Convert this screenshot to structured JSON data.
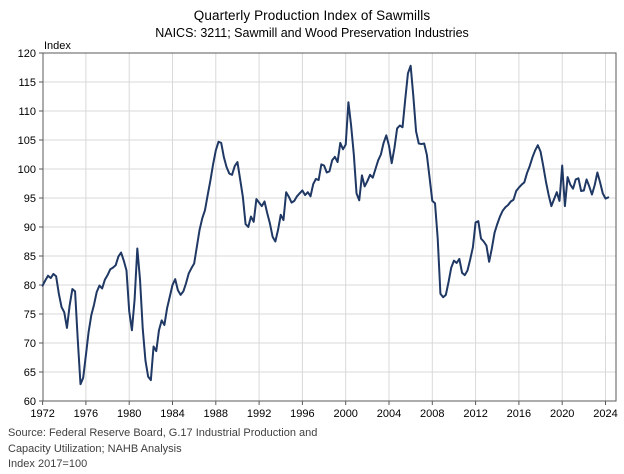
{
  "chart": {
    "title": "Quarterly Production Index of Sawmills",
    "subtitle": "NAICS: 3211; Sawmill and Wood Preservation Industries",
    "y_axis_unit_label": "Index",
    "source_lines": [
      "Source: Federal Reserve Board, G.17 Industrial Production and",
      "Capacity Utilization; NAHB Analysis",
      "Index 2017=100"
    ],
    "colors": {
      "line": "#1F3864",
      "grid": "#D9D9D9",
      "frame": "#595959",
      "tick": "#595959",
      "label_text": "#000000",
      "source_text": "#3f3f3f"
    }
  },
  "chart_data": {
    "type": "line",
    "title": "Quarterly Production Index of Sawmills",
    "subtitle": "NAICS: 3211; Sawmill and Wood Preservation Industries",
    "ylabel": "Index",
    "index_base_note": "Index 2017=100",
    "frequency": "quarterly",
    "x_start_year": 1972,
    "x_end": "2024Q2",
    "x_tick_years": [
      1972,
      1976,
      1980,
      1984,
      1988,
      1992,
      1996,
      2000,
      2004,
      2008,
      2012,
      2016,
      2020,
      2024
    ],
    "y_ticks": [
      60,
      65,
      70,
      75,
      80,
      85,
      90,
      95,
      100,
      105,
      110,
      115,
      120
    ],
    "ylim": [
      60,
      120
    ],
    "grid": true,
    "legend": "none",
    "series": [
      {
        "name": "Sawmill and wood preservation production index (NAICS 3211, 2017=100)",
        "values": [
          79.9,
          80.8,
          81.6,
          81.2,
          81.9,
          81.5,
          78.5,
          76.2,
          75.3,
          72.6,
          76.5,
          79.3,
          78.9,
          70.5,
          62.9,
          64.0,
          67.9,
          71.9,
          74.8,
          76.6,
          78.8,
          79.9,
          79.4,
          80.9,
          81.7,
          82.7,
          83.0,
          83.4,
          84.9,
          85.6,
          84.2,
          82.5,
          75.5,
          72.2,
          77.5,
          86.3,
          80.9,
          72.5,
          67.0,
          64.2,
          63.6,
          69.4,
          68.6,
          72.2,
          73.9,
          73.1,
          76.0,
          78.0,
          80.0,
          81.0,
          79.1,
          78.3,
          78.9,
          80.3,
          82.0,
          82.9,
          83.7,
          86.6,
          89.5,
          91.5,
          92.9,
          95.5,
          98.0,
          100.8,
          103.2,
          104.7,
          104.5,
          102.0,
          100.3,
          99.2,
          99.0,
          100.5,
          101.2,
          98.2,
          95.2,
          90.5,
          90.0,
          91.8,
          90.9,
          94.8,
          94.2,
          93.6,
          94.4,
          92.4,
          90.6,
          88.3,
          87.5,
          89.5,
          92.1,
          91.2,
          96.0,
          95.2,
          94.2,
          94.5,
          95.3,
          95.8,
          96.3,
          95.5,
          96.0,
          95.3,
          97.4,
          98.3,
          98.1,
          100.8,
          100.6,
          99.4,
          99.6,
          101.5,
          102.1,
          101.2,
          104.5,
          103.4,
          104.2,
          111.5,
          107.5,
          102.5,
          95.8,
          94.6,
          98.9,
          97.0,
          97.9,
          99.0,
          98.5,
          100.0,
          101.5,
          102.5,
          104.5,
          105.8,
          104.0,
          101.0,
          103.6,
          107.0,
          107.5,
          107.2,
          112.0,
          116.5,
          117.8,
          112.5,
          106.5,
          104.4,
          104.3,
          104.4,
          102.4,
          98.5,
          94.5,
          94.1,
          88.0,
          78.5,
          77.9,
          78.3,
          80.5,
          83.0,
          84.2,
          83.8,
          84.5,
          82.1,
          81.7,
          82.5,
          84.4,
          86.5,
          90.8,
          91.0,
          88.0,
          87.5,
          86.8,
          84.0,
          86.3,
          89.0,
          90.5,
          91.8,
          92.8,
          93.4,
          93.8,
          94.4,
          94.7,
          96.2,
          96.8,
          97.3,
          97.7,
          99.3,
          100.5,
          102.0,
          103.2,
          104.1,
          103.0,
          100.5,
          97.8,
          95.5,
          93.6,
          94.8,
          96.0,
          94.5,
          100.6,
          93.6,
          98.6,
          97.3,
          96.6,
          98.2,
          98.4,
          96.2,
          96.3,
          98.2,
          97.0,
          95.6,
          97.2,
          99.4,
          97.7,
          95.8,
          94.9,
          95.1
        ]
      }
    ]
  }
}
